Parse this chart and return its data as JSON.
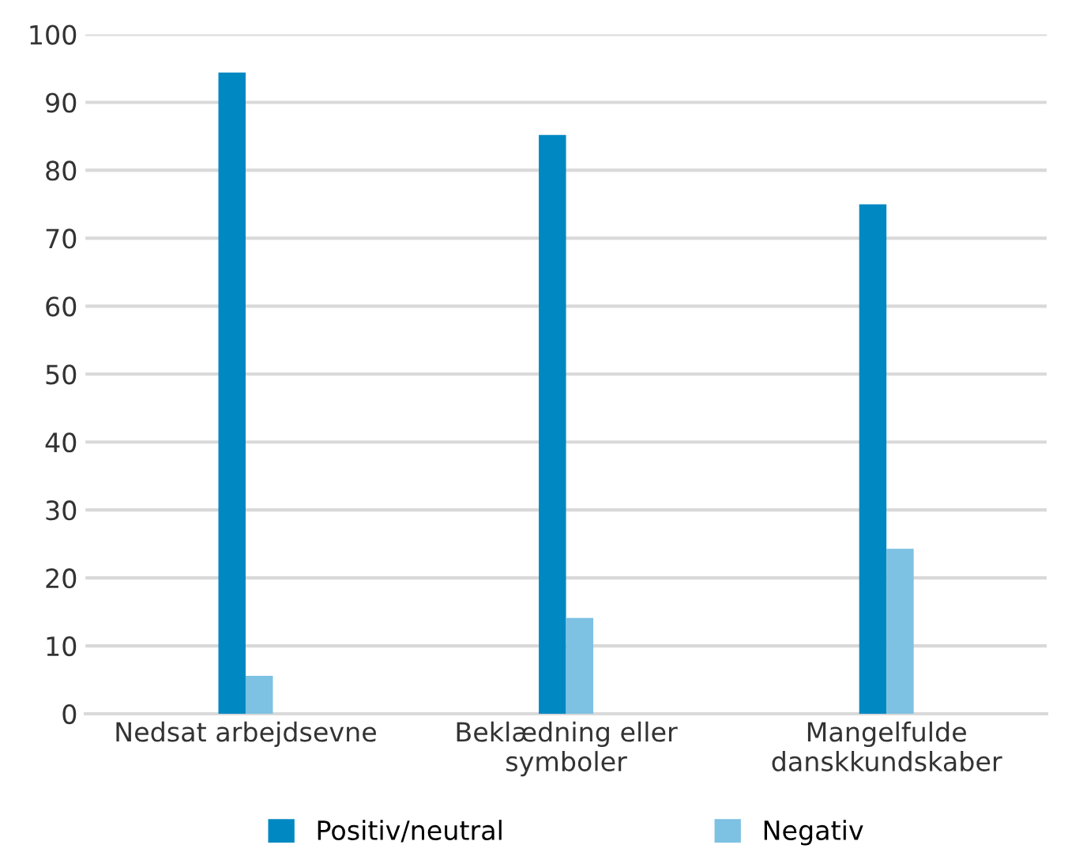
{
  "chart_data": {
    "type": "bar",
    "categories": [
      "Nedsat arbejdsevne",
      "Beklædning eller\nsymboler",
      "Mangelfulde\ndanskkundskaber"
    ],
    "series": [
      {
        "name": "Positiv/neutral",
        "color": "#0088c2",
        "values": [
          94.4,
          85.2,
          75
        ]
      },
      {
        "name": "Negativ",
        "color": "#7dc1e3",
        "values": [
          5.6,
          14.1,
          24.3
        ]
      }
    ],
    "ylim": [
      0,
      100
    ],
    "yticks": [
      0,
      10,
      20,
      30,
      40,
      50,
      60,
      70,
      80,
      90,
      100
    ],
    "grid": "y",
    "legend": "bottom"
  }
}
